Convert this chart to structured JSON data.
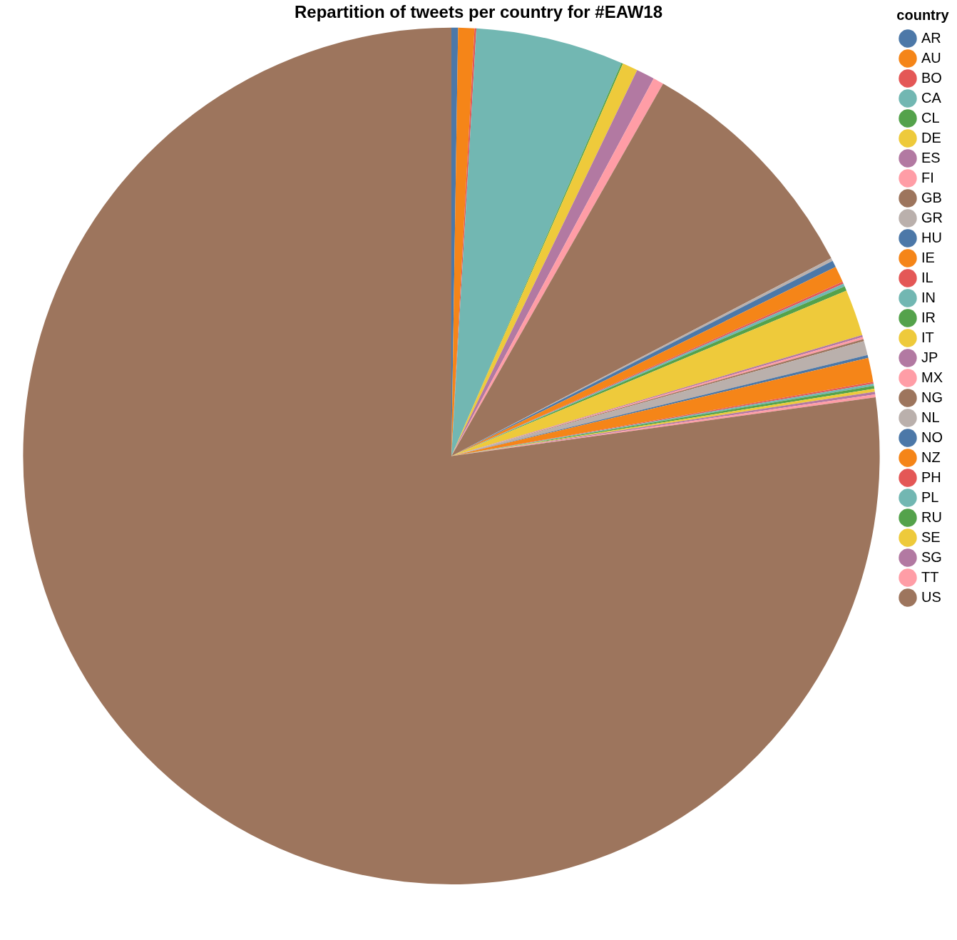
{
  "chart_data": {
    "type": "pie",
    "title": "Repartition of tweets per country for #EAW18",
    "legend_title": "country",
    "legend": "right",
    "categories": [
      "AR",
      "AU",
      "BO",
      "CA",
      "CL",
      "DE",
      "ES",
      "FI",
      "GB",
      "GR",
      "HU",
      "IE",
      "IL",
      "IN",
      "IR",
      "IT",
      "JP",
      "MX",
      "NG",
      "NL",
      "NO",
      "NZ",
      "PH",
      "PL",
      "RU",
      "SE",
      "SG",
      "TT",
      "US"
    ],
    "values": [
      0.25,
      0.61,
      0.07,
      5.57,
      0.06,
      0.58,
      0.69,
      0.4,
      9.13,
      0.11,
      0.25,
      0.61,
      0.08,
      0.11,
      0.17,
      1.75,
      0.08,
      0.08,
      0.08,
      0.53,
      0.11,
      0.91,
      0.07,
      0.08,
      0.11,
      0.11,
      0.1,
      0.11,
      77.19
    ],
    "colors": [
      "#4c78a8",
      "#f58518",
      "#e45756",
      "#72b7b2",
      "#54a24b",
      "#eeca3b",
      "#b279a2",
      "#ff9da6",
      "#9d755d",
      "#bab0ac",
      "#4c78a8",
      "#f58518",
      "#e45756",
      "#72b7b2",
      "#54a24b",
      "#eeca3b",
      "#b279a2",
      "#ff9da6",
      "#9d755d",
      "#bab0ac",
      "#4c78a8",
      "#f58518",
      "#e45756",
      "#72b7b2",
      "#54a24b",
      "#eeca3b",
      "#b279a2",
      "#ff9da6",
      "#9d755d"
    ]
  }
}
